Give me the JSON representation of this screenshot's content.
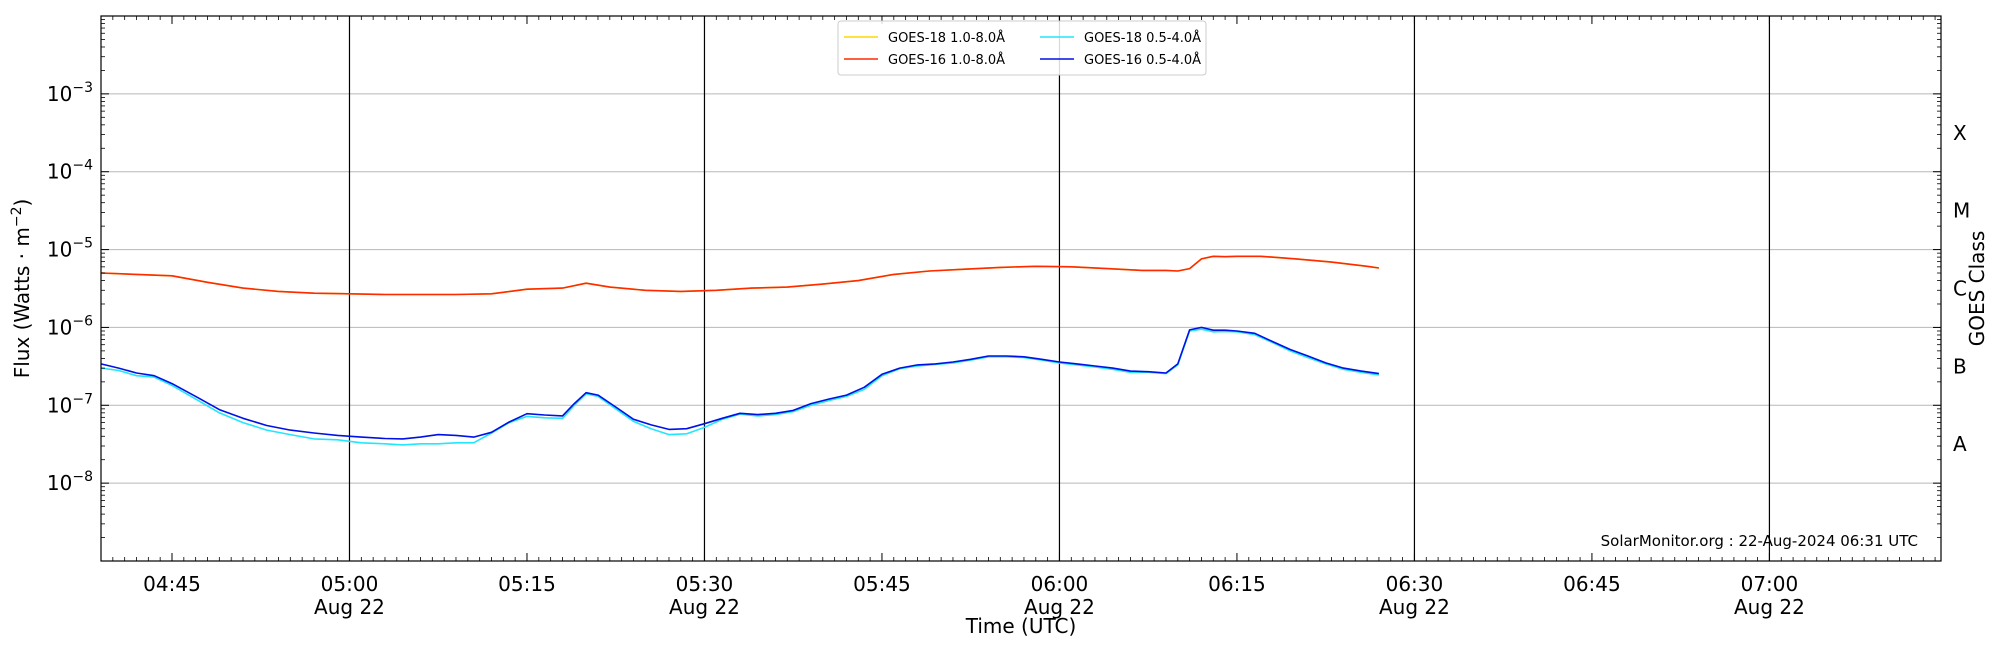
{
  "chart_data": {
    "type": "line",
    "ylabel": "Flux (Watts · m⁻²)",
    "xlabel": "Time (UTC)",
    "right_label": "GOES Class",
    "y_scale": "log",
    "ylim": [
      1e-09,
      0.01
    ],
    "x_minutes_range": [
      279.0,
      434.5
    ],
    "y_ticks": [
      {
        "value": 1e-08,
        "mant": "10",
        "exp": "−8"
      },
      {
        "value": 1e-07,
        "mant": "10",
        "exp": "−7"
      },
      {
        "value": 1e-06,
        "mant": "10",
        "exp": "−6"
      },
      {
        "value": 1e-05,
        "mant": "10",
        "exp": "−5"
      },
      {
        "value": 0.0001,
        "mant": "10",
        "exp": "−4"
      },
      {
        "value": 0.001,
        "mant": "10",
        "exp": "−3"
      }
    ],
    "x_ticks": [
      {
        "t": 285,
        "label": "04:45",
        "date": ""
      },
      {
        "t": 300,
        "label": "05:00",
        "date": "Aug 22"
      },
      {
        "t": 315,
        "label": "05:15",
        "date": ""
      },
      {
        "t": 330,
        "label": "05:30",
        "date": "Aug 22"
      },
      {
        "t": 345,
        "label": "05:45",
        "date": ""
      },
      {
        "t": 360,
        "label": "06:00",
        "date": "Aug 22"
      },
      {
        "t": 375,
        "label": "06:15",
        "date": ""
      },
      {
        "t": 390,
        "label": "06:30",
        "date": "Aug 22"
      },
      {
        "t": 405,
        "label": "06:45",
        "date": ""
      },
      {
        "t": 420,
        "label": "07:00",
        "date": "Aug 22"
      }
    ],
    "vertical_lines": [
      300,
      330,
      360,
      390,
      420
    ],
    "goes_classes": [
      {
        "label": "A",
        "value": 3.16e-08
      },
      {
        "label": "B",
        "value": 3.16e-07
      },
      {
        "label": "C",
        "value": 3.16e-06
      },
      {
        "label": "M",
        "value": 3.16e-05
      },
      {
        "label": "X",
        "value": 0.000316
      }
    ],
    "grid": true,
    "legend_position": "top-center",
    "credit": "SolarMonitor.org : 22-Aug-2024 06:31 UTC",
    "series": [
      {
        "name": "GOES-18 1.0-8.0Å",
        "color": "#ffd700",
        "legend_order": 0,
        "x": [
          279,
          282,
          285,
          288,
          291,
          294,
          297,
          300,
          303,
          306,
          309,
          312,
          315,
          318,
          320,
          322,
          325,
          328,
          331,
          334,
          337,
          340,
          343,
          346,
          349,
          352,
          355,
          358,
          361,
          364,
          367,
          369,
          370,
          371,
          372,
          373,
          374,
          375,
          377,
          380,
          383,
          386,
          387
        ],
        "y": [
          5e-06,
          4.8e-06,
          4.6e-06,
          3.8e-06,
          3.2e-06,
          2.9e-06,
          2.75e-06,
          2.7e-06,
          2.65e-06,
          2.65e-06,
          2.65e-06,
          2.7e-06,
          3.1e-06,
          3.2e-06,
          3.7e-06,
          3.3e-06,
          3e-06,
          2.9e-06,
          3e-06,
          3.2e-06,
          3.3e-06,
          3.6e-06,
          4e-06,
          4.8e-06,
          5.3e-06,
          5.6e-06,
          5.9e-06,
          6.1e-06,
          6e-06,
          5.7e-06,
          5.4e-06,
          5.4e-06,
          5.3e-06,
          5.7e-06,
          7.6e-06,
          8.2e-06,
          8.1e-06,
          8.2e-06,
          8.2e-06,
          7.6e-06,
          6.9e-06,
          6.1e-06,
          5.8e-06
        ]
      },
      {
        "name": "GOES-16 1.0-8.0Å",
        "color": "#ff2a00",
        "legend_order": 1,
        "x": [
          279,
          282,
          285,
          288,
          291,
          294,
          297,
          300,
          303,
          306,
          309,
          312,
          315,
          318,
          320,
          322,
          325,
          328,
          331,
          334,
          337,
          340,
          343,
          346,
          349,
          352,
          355,
          358,
          361,
          364,
          367,
          369,
          370,
          371,
          372,
          373,
          374,
          375,
          377,
          380,
          383,
          386,
          387
        ],
        "y": [
          5e-06,
          4.8e-06,
          4.6e-06,
          3.8e-06,
          3.2e-06,
          2.9e-06,
          2.75e-06,
          2.7e-06,
          2.65e-06,
          2.65e-06,
          2.65e-06,
          2.7e-06,
          3.1e-06,
          3.2e-06,
          3.7e-06,
          3.3e-06,
          3e-06,
          2.9e-06,
          3e-06,
          3.2e-06,
          3.3e-06,
          3.6e-06,
          4e-06,
          4.8e-06,
          5.3e-06,
          5.6e-06,
          5.9e-06,
          6.1e-06,
          6e-06,
          5.7e-06,
          5.4e-06,
          5.4e-06,
          5.3e-06,
          5.7e-06,
          7.6e-06,
          8.2e-06,
          8.1e-06,
          8.2e-06,
          8.2e-06,
          7.6e-06,
          6.9e-06,
          6.1e-06,
          5.8e-06
        ]
      },
      {
        "name": "GOES-18 0.5-4.0Å",
        "color": "#22e6ff",
        "legend_order": 2,
        "x": [
          279,
          280.5,
          282,
          283.5,
          285,
          287,
          289,
          291,
          293,
          295,
          297,
          299,
          301,
          303,
          304.5,
          306,
          307.5,
          309,
          310.5,
          312,
          313.5,
          315,
          316.5,
          318,
          319,
          320,
          321,
          322.5,
          324,
          325.5,
          327,
          328.5,
          330,
          331.5,
          333,
          334.5,
          336,
          337.5,
          339,
          340.5,
          342,
          343.5,
          345,
          346.5,
          348,
          349.5,
          351,
          352.5,
          354,
          355.5,
          357,
          358.5,
          360,
          361.5,
          363,
          364.5,
          366,
          367.5,
          369,
          370,
          371,
          372,
          373,
          374,
          375,
          376.5,
          378,
          379.5,
          381,
          382.5,
          384,
          385.5,
          387
        ],
        "y": [
          3e-07,
          2.8e-07,
          2.4e-07,
          2.3e-07,
          1.8e-07,
          1.2e-07,
          8e-08,
          6e-08,
          4.8e-08,
          4.2e-08,
          3.7e-08,
          3.6e-08,
          3.3e-08,
          3.2e-08,
          3.1e-08,
          3.2e-08,
          3.2e-08,
          3.3e-08,
          3.3e-08,
          4.4e-08,
          6e-08,
          7.2e-08,
          6.9e-08,
          6.8e-08,
          1e-07,
          1.4e-07,
          1.3e-07,
          9e-08,
          6.2e-08,
          5e-08,
          4.2e-08,
          4.3e-08,
          5.2e-08,
          6.6e-08,
          7.7e-08,
          7.3e-08,
          7.6e-08,
          8.3e-08,
          1e-07,
          1.15e-07,
          1.3e-07,
          1.6e-07,
          2.4e-07,
          2.95e-07,
          3.2e-07,
          3.35e-07,
          3.5e-07,
          3.8e-07,
          4.2e-07,
          4.2e-07,
          4.1e-07,
          3.8e-07,
          3.5e-07,
          3.3e-07,
          3.1e-07,
          2.9e-07,
          2.65e-07,
          2.65e-07,
          2.55e-07,
          3.3e-07,
          9e-07,
          9.5e-07,
          8.8e-07,
          8.9e-07,
          8.8e-07,
          8.1e-07,
          6.4e-07,
          5e-07,
          4.1e-07,
          3.4e-07,
          2.9e-07,
          2.65e-07,
          2.45e-07
        ]
      },
      {
        "name": "GOES-16 0.5-4.0Å",
        "color": "#0011e6",
        "legend_order": 3,
        "x": [
          279,
          280.5,
          282,
          283.5,
          285,
          287,
          289,
          291,
          293,
          295,
          297,
          299,
          301,
          303,
          304.5,
          306,
          307.5,
          309,
          310.5,
          312,
          313.5,
          315,
          316.5,
          318,
          319,
          320,
          321,
          322.5,
          324,
          325.5,
          327,
          328.5,
          330,
          331.5,
          333,
          334.5,
          336,
          337.5,
          339,
          340.5,
          342,
          343.5,
          345,
          346.5,
          348,
          349.5,
          351,
          352.5,
          354,
          355.5,
          357,
          358.5,
          360,
          361.5,
          363,
          364.5,
          366,
          367.5,
          369,
          370,
          371,
          372,
          373,
          374,
          375,
          376.5,
          378,
          379.5,
          381,
          382.5,
          384,
          385.5,
          387
        ],
        "y": [
          3.4e-07,
          3e-07,
          2.6e-07,
          2.4e-07,
          1.9e-07,
          1.3e-07,
          8.8e-08,
          6.8e-08,
          5.5e-08,
          4.8e-08,
          4.4e-08,
          4.1e-08,
          3.9e-08,
          3.75e-08,
          3.7e-08,
          3.9e-08,
          4.2e-08,
          4.1e-08,
          3.9e-08,
          4.5e-08,
          6.1e-08,
          7.8e-08,
          7.5e-08,
          7.3e-08,
          1.05e-07,
          1.45e-07,
          1.35e-07,
          9.5e-08,
          6.6e-08,
          5.6e-08,
          4.9e-08,
          5e-08,
          5.8e-08,
          6.8e-08,
          7.9e-08,
          7.6e-08,
          7.9e-08,
          8.6e-08,
          1.05e-07,
          1.2e-07,
          1.35e-07,
          1.7e-07,
          2.5e-07,
          3e-07,
          3.3e-07,
          3.4e-07,
          3.6e-07,
          3.9e-07,
          4.3e-07,
          4.3e-07,
          4.2e-07,
          3.9e-07,
          3.6e-07,
          3.4e-07,
          3.2e-07,
          3e-07,
          2.75e-07,
          2.7e-07,
          2.6e-07,
          3.4e-07,
          9.3e-07,
          1e-06,
          9.2e-07,
          9.2e-07,
          9e-07,
          8.4e-07,
          6.6e-07,
          5.2e-07,
          4.3e-07,
          3.5e-07,
          3e-07,
          2.75e-07,
          2.55e-07
        ]
      }
    ]
  }
}
